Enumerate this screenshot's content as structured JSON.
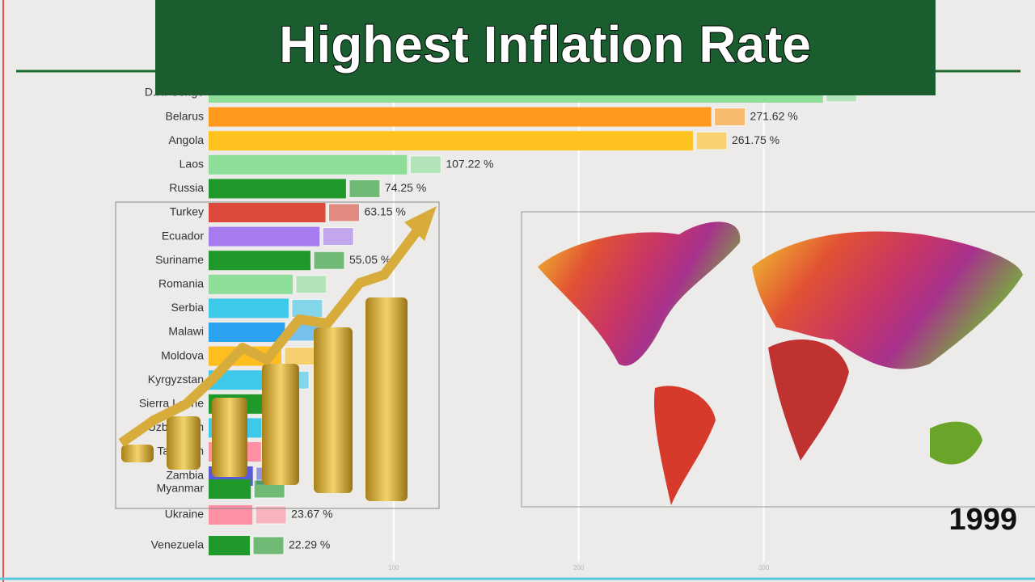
{
  "chart_data": {
    "type": "bar",
    "title": "Highest Inflation Rate",
    "year": "1999",
    "categories": [
      "D.R. Congo",
      "Belarus",
      "Angola",
      "Laos",
      "Russia",
      "Turkey",
      "Ecuador",
      "Suriname",
      "Romania",
      "Serbia",
      "Malawi",
      "Moldova",
      "Kyrgyzstan",
      "Sierra Leone",
      "Uzbekistan",
      "Tajikistan",
      "Zambia",
      "Myanmar",
      "Ukraine",
      "Venezuela"
    ],
    "values": [
      332,
      271.62,
      261.75,
      107.22,
      74.25,
      63.15,
      59.95,
      55.05,
      45.4,
      43.2,
      41.2,
      39.3,
      35.9,
      29.7,
      28.6,
      28.3,
      23.9,
      22.8,
      23.67,
      22.29
    ],
    "value_labels": [
      null,
      "271.62 %",
      "261.75 %",
      "107.22 %",
      "74.25 %",
      "63.15 %",
      null,
      "55.05 %",
      null,
      null,
      null,
      null,
      null,
      null,
      null,
      null,
      null,
      null,
      "23.67 %",
      "22.29 %"
    ],
    "colors": [
      "#8ede9a",
      "#ff9a1f",
      "#ffc21f",
      "#8ede9a",
      "#1f9a2a",
      "#db4a3a",
      "#a77bf0",
      "#1f9a2a",
      "#8ede9a",
      "#3ec8ea",
      "#2ba3f0",
      "#ffbe1f",
      "#3ec8ea",
      "#1f9a2a",
      "#3ec8ea",
      "#ff8fa3",
      "#5a5ad8",
      "#1f9a2a",
      "#ff8fa3",
      "#1f9a2a"
    ],
    "xlim": [
      0,
      437
    ],
    "xticks": [
      100,
      200,
      300
    ],
    "grid": true
  }
}
